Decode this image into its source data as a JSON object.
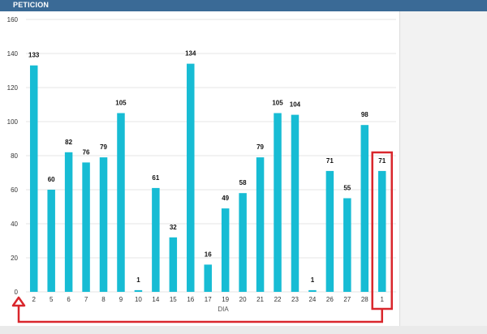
{
  "header": {
    "title": "PETICION"
  },
  "colors": {
    "bar": "#17bcd4",
    "highlight": "#d9262c",
    "grid": "#e6e6e6",
    "header": "#3a6a96"
  },
  "chart_data": {
    "type": "bar",
    "title": "",
    "xlabel": "DIA",
    "ylabel": "",
    "categories": [
      "2",
      "5",
      "6",
      "7",
      "8",
      "9",
      "10",
      "14",
      "15",
      "16",
      "17",
      "19",
      "20",
      "21",
      "22",
      "23",
      "24",
      "26",
      "27",
      "28",
      "1"
    ],
    "values": [
      133,
      60,
      82,
      76,
      79,
      105,
      1,
      61,
      32,
      134,
      16,
      49,
      58,
      79,
      105,
      104,
      1,
      71,
      55,
      98,
      71
    ],
    "ylim": [
      0,
      160
    ],
    "yticks": [
      0,
      20,
      40,
      60,
      80,
      100,
      120,
      140,
      160
    ],
    "grid": true,
    "legend": "none",
    "highlight_category": "1"
  }
}
